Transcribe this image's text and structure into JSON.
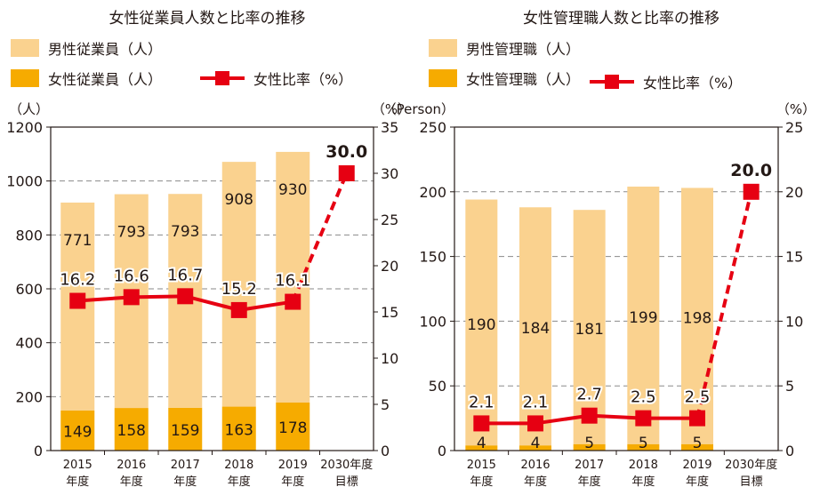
{
  "chart_data": [
    {
      "type": "bar",
      "title": "女性従業員人数と比率の推移",
      "legend": [
        "男性従業員（人）",
        "女性従業員（人）",
        "女性比率（%）"
      ],
      "y_left_unit": "（人）",
      "y_right_unit": "（%）",
      "categories": [
        {
          "year": "2015",
          "suffix": "年度"
        },
        {
          "year": "2016",
          "suffix": "年度"
        },
        {
          "year": "2017",
          "suffix": "年度"
        },
        {
          "year": "2018",
          "suffix": "年度"
        },
        {
          "year": "2019",
          "suffix": "年度"
        },
        {
          "year": "2030年度",
          "suffix": "目標"
        }
      ],
      "ylim_left": [
        0,
        1200
      ],
      "yticks_left": [
        0,
        200,
        400,
        600,
        800,
        1000,
        1200
      ],
      "ylim_right": [
        0,
        35
      ],
      "yticks_right": [
        0,
        5,
        10,
        15,
        20,
        25,
        30,
        35
      ],
      "grid": true,
      "series": [
        {
          "name": "男性従業員（人）",
          "kind": "bar",
          "axis": "left",
          "color": "#FAD28F",
          "values": [
            771,
            793,
            793,
            908,
            930,
            null
          ],
          "labels": [
            "771",
            "793",
            "793",
            "908",
            "930",
            ""
          ]
        },
        {
          "name": "女性従業員（人）",
          "kind": "bar",
          "axis": "left",
          "color": "#F6AB00",
          "values": [
            149,
            158,
            159,
            163,
            178,
            null
          ],
          "labels": [
            "149",
            "158",
            "159",
            "163",
            "178",
            ""
          ]
        },
        {
          "name": "女性比率（%）",
          "kind": "line",
          "axis": "right",
          "color": "#E60012",
          "values": [
            16.2,
            16.6,
            16.7,
            15.2,
            16.1,
            30.0
          ],
          "labels": [
            "16.2",
            "16.6",
            "16.7",
            "15.2",
            "16.1",
            "30.0"
          ],
          "target_dashed": true
        }
      ]
    },
    {
      "type": "bar",
      "title": "女性管理職人数と比率の推移",
      "legend": [
        "男性管理職（人）",
        "女性管理職（人）",
        "女性比率（%）"
      ],
      "y_left_unit": "（Person）",
      "y_right_unit": "（%）",
      "categories": [
        {
          "year": "2015",
          "suffix": "年度"
        },
        {
          "year": "2016",
          "suffix": "年度"
        },
        {
          "year": "2017",
          "suffix": "年度"
        },
        {
          "year": "2018",
          "suffix": "年度"
        },
        {
          "year": "2019",
          "suffix": "年度"
        },
        {
          "year": "2030年度",
          "suffix": "目標"
        }
      ],
      "ylim_left": [
        0,
        250
      ],
      "yticks_left": [
        0,
        50,
        100,
        150,
        200,
        250
      ],
      "ylim_right": [
        0,
        25
      ],
      "yticks_right": [
        0,
        5,
        10,
        15,
        20,
        25
      ],
      "grid": true,
      "series": [
        {
          "name": "男性管理職（人）",
          "kind": "bar",
          "axis": "left",
          "color": "#FAD28F",
          "values": [
            190,
            184,
            181,
            199,
            198,
            null
          ],
          "labels": [
            "190",
            "184",
            "181",
            "199",
            "198",
            ""
          ]
        },
        {
          "name": "女性管理職（人）",
          "kind": "bar",
          "axis": "left",
          "color": "#F6AB00",
          "values": [
            4,
            4,
            5,
            5,
            5,
            null
          ],
          "labels": [
            "4",
            "4",
            "5",
            "5",
            "5",
            ""
          ]
        },
        {
          "name": "女性比率（%）",
          "kind": "line",
          "axis": "right",
          "color": "#E60012",
          "values": [
            2.1,
            2.1,
            2.7,
            2.5,
            2.5,
            20.0
          ],
          "labels": [
            "2.1",
            "2.1",
            "2.7",
            "2.5",
            "2.5",
            "20.0"
          ],
          "target_dashed": true
        }
      ]
    }
  ]
}
